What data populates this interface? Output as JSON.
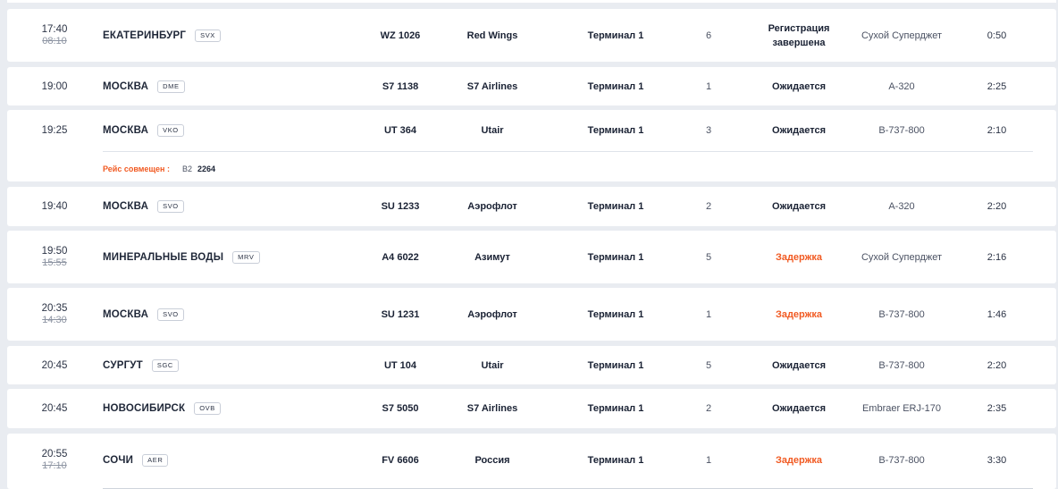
{
  "colors": {
    "page_bg": "#e9ecf1",
    "row_bg": "#ffffff",
    "text": "#1a2234",
    "accent_delay": "#f15a22",
    "muted": "#8e95a3"
  },
  "flights": [
    {
      "time": "17:40",
      "scheduled": "08:10",
      "city": "ЕКАТЕРИНБУРГ",
      "iata": "SVX",
      "flight": "WZ 1026",
      "airline": "Red Wings",
      "terminal": "Терминал 1",
      "gate": "6",
      "status": "Регистрация завершена",
      "status_type": "closed",
      "aircraft": "Сухой Суперджет",
      "duration": "0:50"
    },
    {
      "time": "19:00",
      "scheduled": "",
      "city": "МОСКВА",
      "iata": "DME",
      "flight": "S7 1138",
      "airline": "S7 Airlines",
      "terminal": "Терминал 1",
      "gate": "1",
      "status": "Ожидается",
      "status_type": "expected",
      "aircraft": "A-320",
      "duration": "2:25"
    },
    {
      "time": "19:25",
      "scheduled": "",
      "city": "МОСКВА",
      "iata": "VKO",
      "flight": "UT 364",
      "airline": "Utair",
      "terminal": "Терминал 1",
      "gate": "3",
      "status": "Ожидается",
      "status_type": "expected",
      "aircraft": "B-737-800",
      "duration": "2:10",
      "codeshare": {
        "label": "Рейс совмещен :",
        "code": "B2",
        "number": "2264"
      }
    },
    {
      "time": "19:40",
      "scheduled": "",
      "city": "МОСКВА",
      "iata": "SVO",
      "flight": "SU 1233",
      "airline": "Аэрофлот",
      "terminal": "Терминал 1",
      "gate": "2",
      "status": "Ожидается",
      "status_type": "expected",
      "aircraft": "A-320",
      "duration": "2:20"
    },
    {
      "time": "19:50",
      "scheduled": "15:55",
      "city": "МИНЕРАЛЬНЫЕ ВОДЫ",
      "iata": "MRV",
      "flight": "A4 6022",
      "airline": "Азимут",
      "terminal": "Терминал 1",
      "gate": "5",
      "status": "Задержка",
      "status_type": "delay",
      "aircraft": "Сухой Суперджет",
      "duration": "2:16"
    },
    {
      "time": "20:35",
      "scheduled": "14:30",
      "city": "МОСКВА",
      "iata": "SVO",
      "flight": "SU 1231",
      "airline": "Аэрофлот",
      "terminal": "Терминал 1",
      "gate": "1",
      "status": "Задержка",
      "status_type": "delay",
      "aircraft": "B-737-800",
      "duration": "1:46"
    },
    {
      "time": "20:45",
      "scheduled": "",
      "city": "СУРГУТ",
      "iata": "SGC",
      "flight": "UT 104",
      "airline": "Utair",
      "terminal": "Терминал 1",
      "gate": "5",
      "status": "Ожидается",
      "status_type": "expected",
      "aircraft": "B-737-800",
      "duration": "2:20"
    },
    {
      "time": "20:45",
      "scheduled": "",
      "city": "НОВОСИБИРСК",
      "iata": "OVB",
      "flight": "S7 5050",
      "airline": "S7 Airlines",
      "terminal": "Терминал 1",
      "gate": "2",
      "status": "Ожидается",
      "status_type": "expected",
      "aircraft": "Embraer ERJ-170",
      "duration": "2:35"
    },
    {
      "time": "20:55",
      "scheduled": "17:10",
      "city": "СОЧИ",
      "iata": "AER",
      "flight": "FV 6606",
      "airline": "Россия",
      "terminal": "Терминал 1",
      "gate": "1",
      "status": "Задержка",
      "status_type": "delay",
      "aircraft": "B-737-800",
      "duration": "3:30"
    }
  ]
}
